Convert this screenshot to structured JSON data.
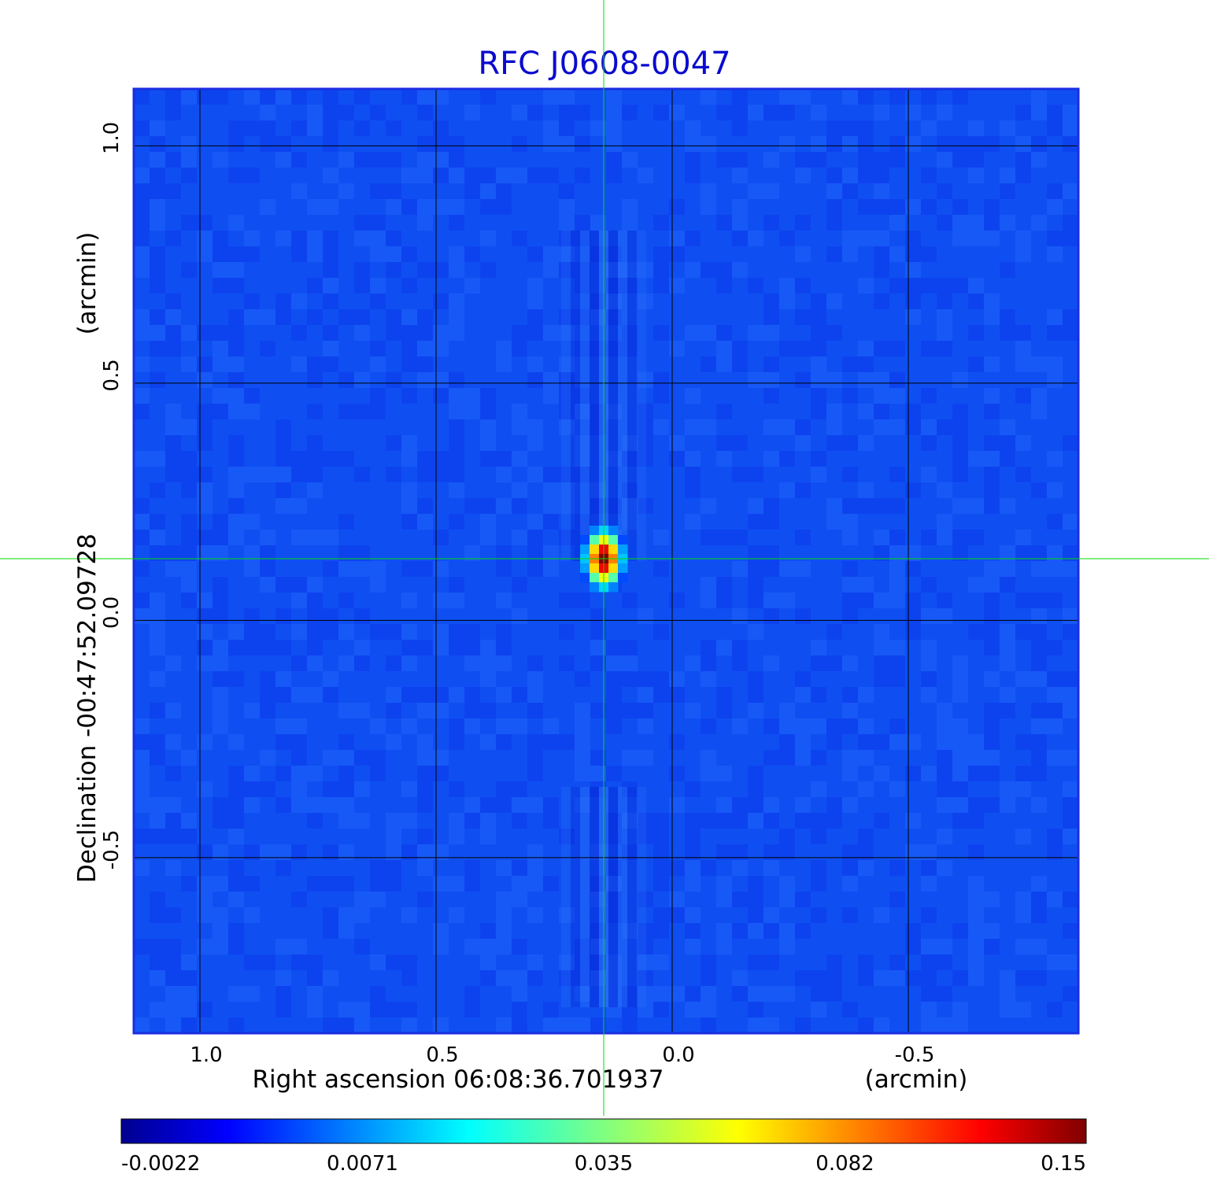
{
  "chart_data": {
    "type": "heatmap",
    "title": "RFC J0608-0047",
    "xlabel": "Right ascension  06:08:36.701937",
    "xlabel_unit": "(arcmin)",
    "ylabel": "Declination  -00:47:52.09728",
    "ylabel_unit": "(arcmin)",
    "x_axis": {
      "ticks": [
        1.0,
        0.5,
        0.0,
        -0.5
      ],
      "tick_labels": [
        "1.0",
        "0.5",
        "0.0",
        "-0.5"
      ],
      "xlim": [
        1.14,
        -0.86
      ],
      "reversed": true
    },
    "y_axis": {
      "ticks": [
        1.0,
        0.5,
        0.0,
        -0.5
      ],
      "tick_labels": [
        "1.0",
        "0.5",
        "0.0",
        "-0.5"
      ],
      "ylim": [
        -0.87,
        1.12
      ]
    },
    "grid": true,
    "crosshair": {
      "x": 0.145,
      "y": 0.13,
      "color": "#00dd00"
    },
    "source": {
      "x": 0.145,
      "y": 0.13,
      "peak": 0.15
    },
    "background_level": 0.0,
    "colormap": "jet",
    "colorbar": {
      "orientation": "horizontal",
      "placement": "bottom",
      "tick_labels": [
        "-0.0022",
        "0.0071",
        "0.035",
        "0.082",
        "0.15"
      ],
      "tick_values": [
        -0.0022,
        0.0071,
        0.035,
        0.082,
        0.15
      ]
    }
  }
}
